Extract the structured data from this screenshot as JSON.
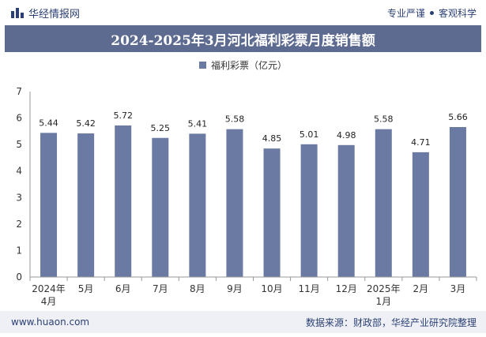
{
  "header": {
    "brand_name": "华经情报网",
    "tagline_left": "专业严谨",
    "tagline_right": "客观科学"
  },
  "footer": {
    "website": "www.huaon.com",
    "source": "数据来源：财政部，华经产业研究院整理"
  },
  "colors": {
    "bar": "#6b7aa2",
    "title_bg": "#5d6b91",
    "brand": "#2b3f73"
  },
  "chart_data": {
    "type": "bar",
    "title": "2024-2025年3月河北福利彩票月度销售额",
    "categories": [
      "2024年4月",
      "5月",
      "6月",
      "7月",
      "8月",
      "9月",
      "10月",
      "11月",
      "12月",
      "2025年1月",
      "2月",
      "3月"
    ],
    "series": [
      {
        "name": "福利彩票（亿元）",
        "values": [
          5.44,
          5.42,
          5.72,
          5.25,
          5.41,
          5.58,
          4.85,
          5.01,
          4.98,
          5.58,
          4.71,
          5.66
        ]
      }
    ],
    "value_labels": [
      "5.44",
      "5.42",
      "5.72",
      "5.25",
      "5.41",
      "5.58",
      "4.85",
      "5.01",
      "4.98",
      "5.58",
      "4.71",
      "5.66"
    ],
    "ylim": [
      0,
      7
    ],
    "yticks": [
      "0",
      "1",
      "2",
      "3",
      "4",
      "5",
      "6",
      "7"
    ],
    "grid": false,
    "legend_position": "top-center"
  }
}
